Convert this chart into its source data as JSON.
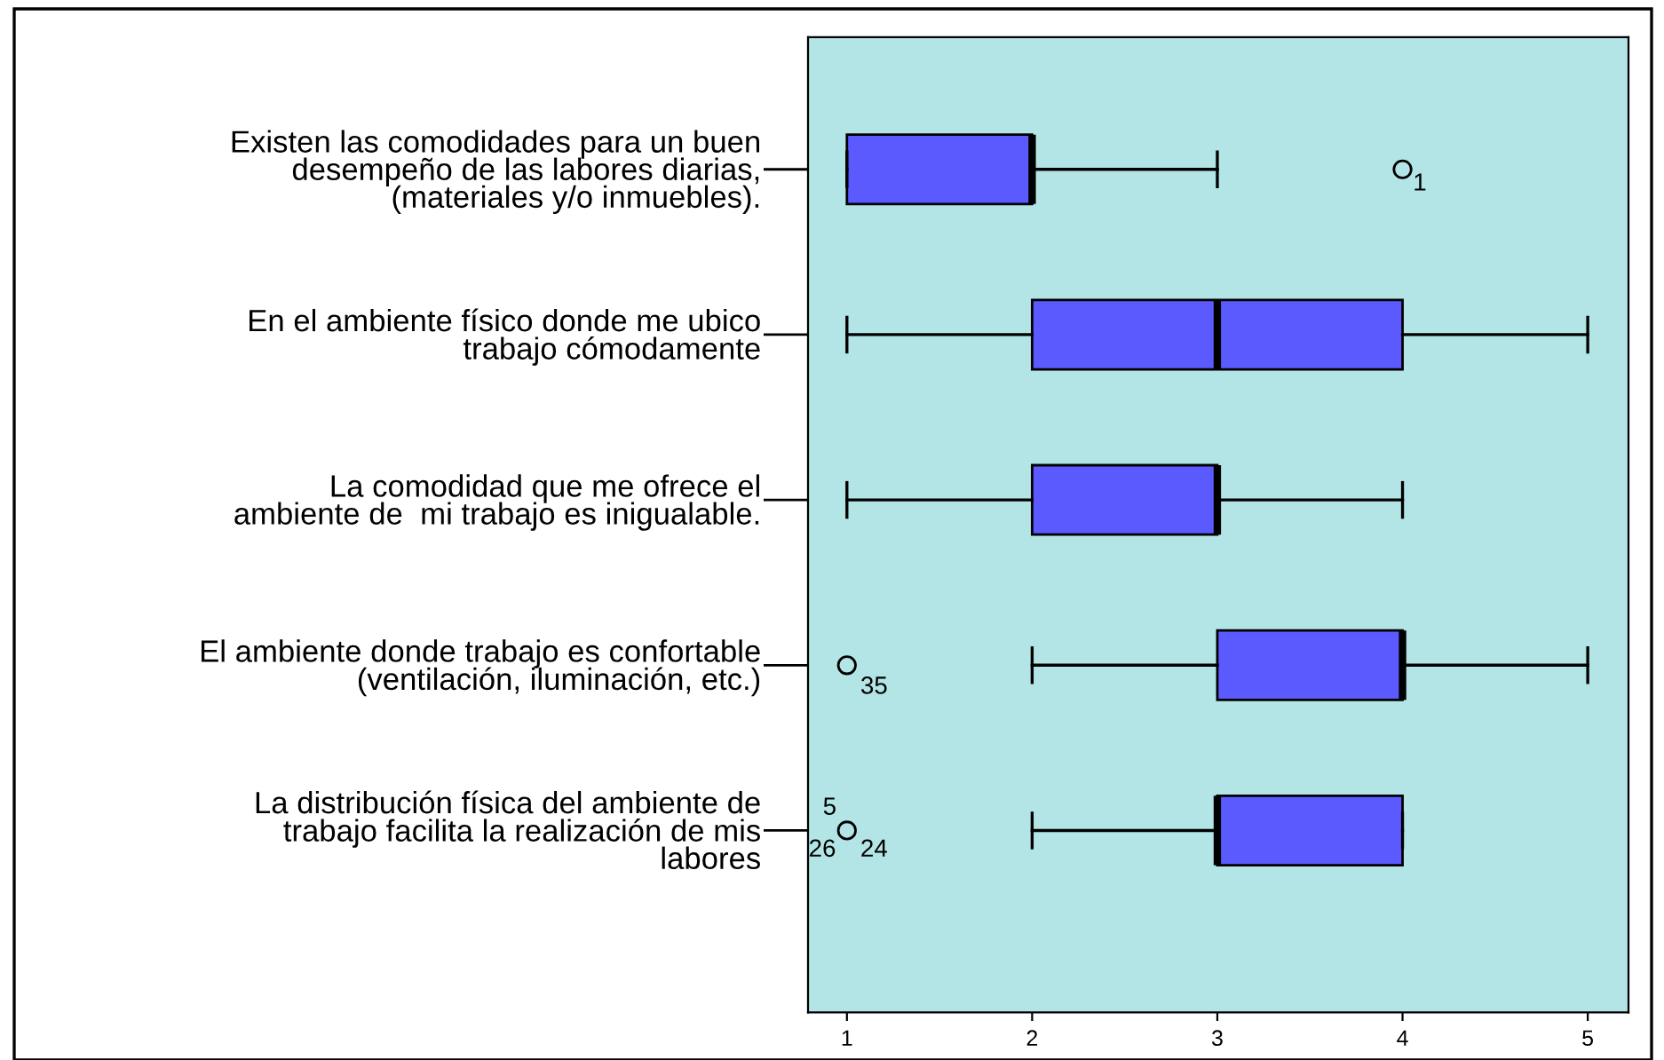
{
  "chart_data": {
    "type": "box",
    "orientation": "horizontal",
    "categories": [
      "Existen las comodidades para un buen\ndesempeño de las labores diarias,\n(materiales y/o inmuebles).",
      "En el ambiente físico donde me ubico\ntrabajo cómodamente",
      "La comodidad que me ofrece el\nambiente de  mi trabajo es inigualable.",
      "El ambiente donde trabajo es confortable\n(ventilación, iluminación, etc.)",
      "La distribución física del ambiente de\ntrabajo facilita la realización de mis\nlabores"
    ],
    "color": "#5a5aff",
    "boxes": [
      {
        "low": 1,
        "q1": 1,
        "median": 2,
        "q3": 2,
        "high": 3,
        "outliers": [
          4
        ]
      },
      {
        "low": 1,
        "q1": 2,
        "median": 3,
        "q3": 4,
        "high": 5
      },
      {
        "low": 1,
        "q1": 2,
        "median": 3,
        "q3": 3,
        "high": 4
      },
      {
        "low": 2,
        "q1": 3,
        "median": 4,
        "q3": 4,
        "high": 5,
        "outliers": [
          1
        ]
      },
      {
        "low": 2,
        "q1": 3,
        "median": 3,
        "q3": 4,
        "high": 4,
        "outliers": [
          1
        ]
      }
    ],
    "xlim": [
      0.79,
      5.22
    ],
    "xticks": [
      1,
      2,
      3,
      4,
      5
    ],
    "annotations": [
      "1",
      "35",
      "5",
      "26",
      "24"
    ],
    "grid": false
  }
}
